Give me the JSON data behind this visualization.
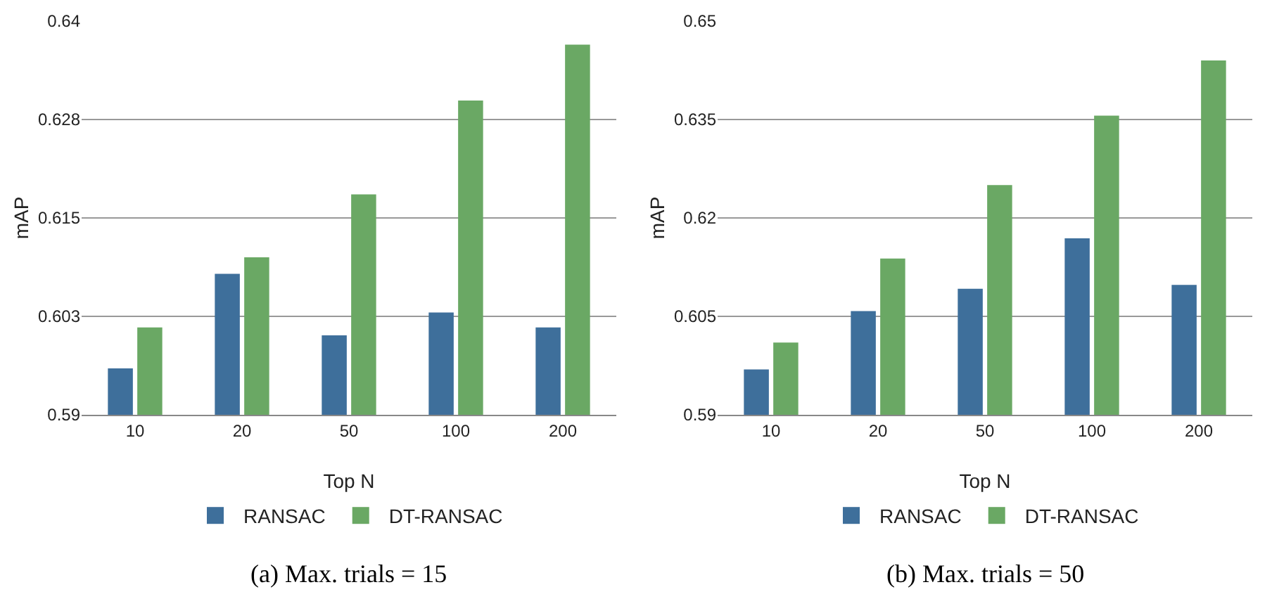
{
  "chart_data": [
    {
      "type": "bar",
      "categories": [
        "10",
        "20",
        "50",
        "100",
        "200"
      ],
      "xlabel": "Top N",
      "ylabel": "mAP",
      "ylim": [
        0.59,
        0.64
      ],
      "yticks": [
        {
          "value": 0.59,
          "label": "0.59"
        },
        {
          "value": 0.6025,
          "label": "0.603"
        },
        {
          "value": 0.615,
          "label": "0.615"
        },
        {
          "value": 0.6275,
          "label": "0.628"
        },
        {
          "value": 0.64,
          "label": "0.64"
        }
      ],
      "grid": "y",
      "legend": "bottom",
      "annotations": [
        "(a) Max. trials = 15"
      ],
      "series": [
        {
          "name": "RANSAC",
          "color": "#3e6f9b",
          "values": [
            0.5959,
            0.6079,
            0.6001,
            0.603,
            0.6011
          ]
        },
        {
          "name": "DT-RANSAC",
          "color": "#6aa864",
          "values": [
            0.6011,
            0.61,
            0.618,
            0.6299,
            0.637
          ]
        }
      ]
    },
    {
      "type": "bar",
      "categories": [
        "10",
        "20",
        "50",
        "100",
        "200"
      ],
      "xlabel": "Top N",
      "ylabel": "mAP",
      "ylim": [
        0.59,
        0.65
      ],
      "yticks": [
        {
          "value": 0.59,
          "label": "0.59"
        },
        {
          "value": 0.605,
          "label": "0.605"
        },
        {
          "value": 0.62,
          "label": "0.62"
        },
        {
          "value": 0.635,
          "label": "0.635"
        },
        {
          "value": 0.65,
          "label": "0.65"
        }
      ],
      "grid": "y",
      "legend": "bottom",
      "annotations": [
        "(b) Max. trials = 50"
      ],
      "series": [
        {
          "name": "RANSAC",
          "color": "#3e6f9b",
          "values": [
            0.5969,
            0.6058,
            0.6092,
            0.6169,
            0.6098
          ]
        },
        {
          "name": "DT-RANSAC",
          "color": "#6aa864",
          "values": [
            0.601,
            0.6138,
            0.625,
            0.6356,
            0.644
          ]
        }
      ]
    }
  ]
}
